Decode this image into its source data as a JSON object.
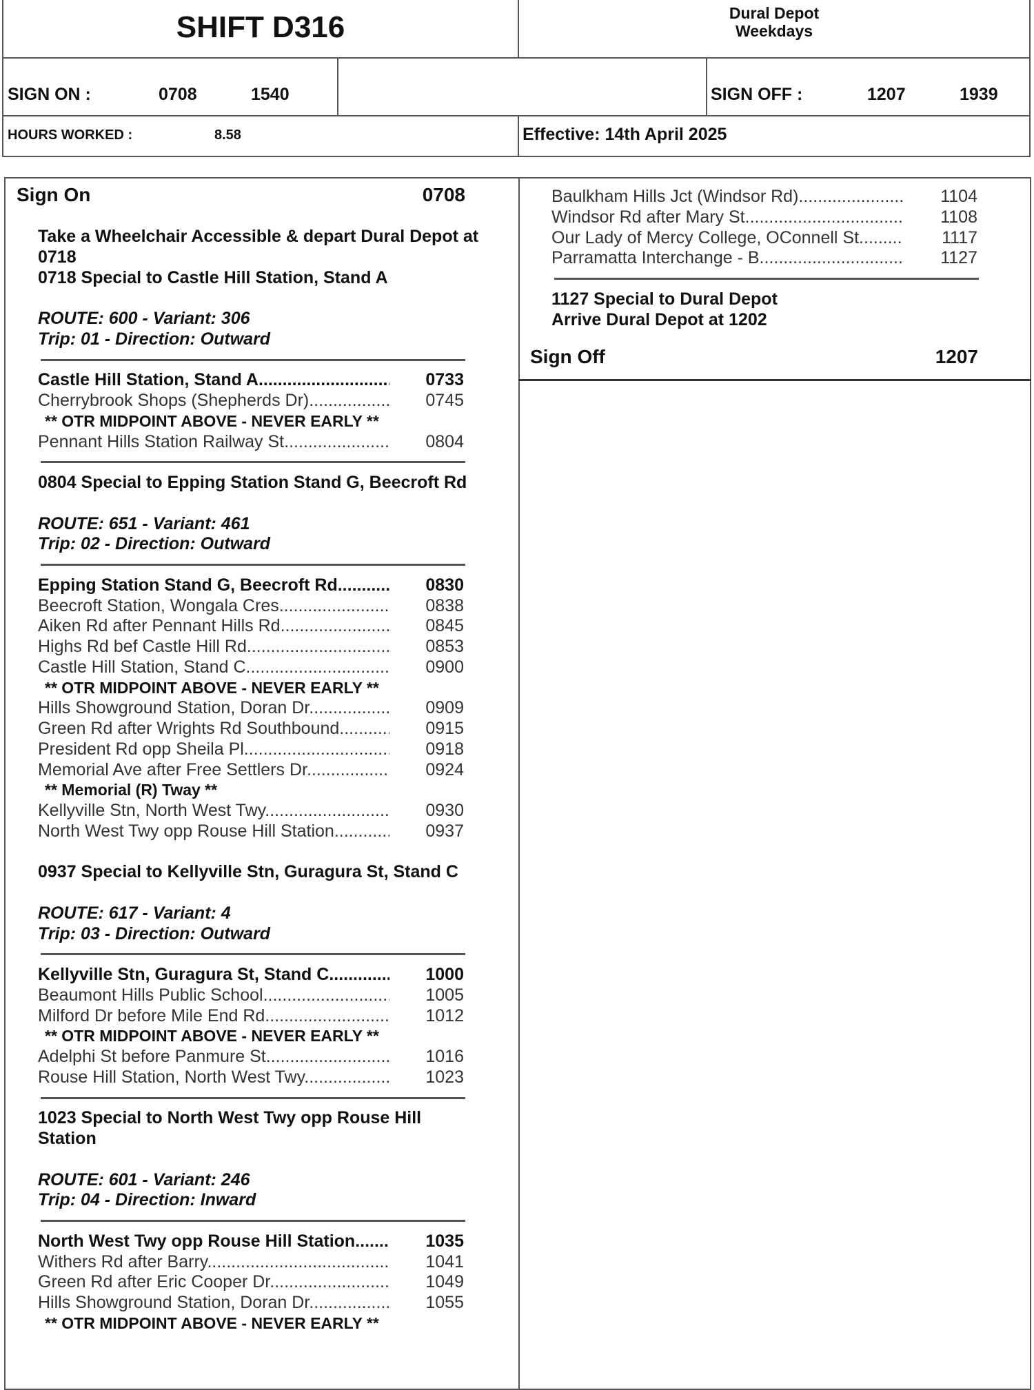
{
  "header": {
    "shift_title": "SHIFT D316",
    "depot": "Dural Depot",
    "days": "Weekdays",
    "sign_on_label": "SIGN ON :",
    "sign_on_times": [
      "0708",
      "1540"
    ],
    "sign_off_label": "SIGN OFF :",
    "sign_off_times": [
      "1207",
      "1939"
    ],
    "hours_worked_label": "HOURS WORKED :",
    "hours_worked": "8.58",
    "effective": "Effective: 14th April 2025"
  },
  "left": {
    "sign_on": {
      "label": "Sign On",
      "time": "0708"
    },
    "items": [
      {
        "type": "line",
        "text": "Take a Wheelchair Accessible & depart Dural Depot at"
      },
      {
        "type": "line",
        "text": "0718"
      },
      {
        "type": "line",
        "text": "0718 Special to Castle Hill Station, Stand A"
      },
      {
        "type": "blank"
      },
      {
        "type": "route",
        "text": "ROUTE: 600 - Variant: 306"
      },
      {
        "type": "route",
        "text": "Trip: 01 - Direction: Outward"
      },
      {
        "type": "rule"
      },
      {
        "type": "stop",
        "bold": true,
        "name": "Castle Hill Station, Stand A",
        "time": "0733"
      },
      {
        "type": "stop",
        "name": "Cherrybrook Shops (Shepherds Dr)",
        "time": "0745"
      },
      {
        "type": "note",
        "text": "** OTR MIDPOINT ABOVE - NEVER EARLY **"
      },
      {
        "type": "stop",
        "name": "Pennant Hills Station Railway St",
        "time": "0804"
      },
      {
        "type": "rule"
      },
      {
        "type": "line",
        "text": "0804 Special to Epping Station Stand G, Beecroft Rd"
      },
      {
        "type": "blank"
      },
      {
        "type": "route",
        "text": "ROUTE: 651 - Variant: 461"
      },
      {
        "type": "route",
        "text": "Trip: 02 - Direction: Outward"
      },
      {
        "type": "rule"
      },
      {
        "type": "stop",
        "bold": true,
        "name": "Epping Station Stand G, Beecroft Rd",
        "time": "0830"
      },
      {
        "type": "stop",
        "name": "Beecroft Station, Wongala Cres",
        "time": "0838"
      },
      {
        "type": "stop",
        "name": "Aiken Rd after Pennant Hills Rd",
        "time": "0845"
      },
      {
        "type": "stop",
        "name": "Highs Rd bef Castle Hill Rd",
        "time": "0853"
      },
      {
        "type": "stop",
        "name": "Castle Hill Station, Stand C",
        "time": "0900"
      },
      {
        "type": "note",
        "text": "** OTR MIDPOINT ABOVE - NEVER EARLY **"
      },
      {
        "type": "stop",
        "name": "Hills Showground Station, Doran Dr",
        "time": "0909"
      },
      {
        "type": "stop",
        "name": "Green Rd after Wrights Rd Southbound",
        "time": "0915"
      },
      {
        "type": "stop",
        "name": "President Rd opp Sheila Pl",
        "time": "0918"
      },
      {
        "type": "stop",
        "name": "Memorial Ave after Free Settlers Dr",
        "time": "0924"
      },
      {
        "type": "note",
        "text": "** Memorial (R) Tway **"
      },
      {
        "type": "stop",
        "name": "Kellyville Stn, North West Twy",
        "time": "0930"
      },
      {
        "type": "stop",
        "name": "North West Twy opp Rouse Hill Station",
        "time": "0937"
      },
      {
        "type": "blank"
      },
      {
        "type": "line",
        "text": "0937 Special to Kellyville Stn, Guragura St, Stand C"
      },
      {
        "type": "blank"
      },
      {
        "type": "route",
        "text": "ROUTE: 617 - Variant: 4"
      },
      {
        "type": "route",
        "text": "Trip: 03 - Direction: Outward"
      },
      {
        "type": "rule"
      },
      {
        "type": "stop",
        "bold": true,
        "name": "Kellyville Stn, Guragura St, Stand C",
        "time": "1000"
      },
      {
        "type": "stop",
        "name": "Beaumont Hills Public School",
        "time": "1005"
      },
      {
        "type": "stop",
        "name": "Milford Dr before Mile End Rd",
        "time": "1012"
      },
      {
        "type": "note",
        "text": "** OTR MIDPOINT ABOVE - NEVER EARLY **"
      },
      {
        "type": "stop",
        "name": "Adelphi St before Panmure St",
        "time": "1016"
      },
      {
        "type": "stop",
        "name": "Rouse Hill Station, North West Twy",
        "time": "1023"
      },
      {
        "type": "rule"
      },
      {
        "type": "line",
        "text": "1023 Special to North West Twy opp Rouse Hill"
      },
      {
        "type": "line",
        "text": "Station"
      },
      {
        "type": "blank"
      },
      {
        "type": "route",
        "text": "ROUTE: 601 - Variant: 246"
      },
      {
        "type": "route",
        "text": "Trip: 04 - Direction: Inward"
      },
      {
        "type": "rule"
      },
      {
        "type": "stop",
        "bold": true,
        "name": "North West Twy opp Rouse Hill Station",
        "time": "1035"
      },
      {
        "type": "stop",
        "name": "Withers Rd after Barry",
        "time": "1041"
      },
      {
        "type": "stop",
        "name": "Green Rd after Eric Cooper Dr",
        "time": "1049"
      },
      {
        "type": "stop",
        "name": "Hills Showground Station, Doran Dr",
        "time": "1055"
      },
      {
        "type": "note",
        "text": "** OTR MIDPOINT ABOVE - NEVER EARLY **"
      }
    ]
  },
  "right": {
    "items": [
      {
        "type": "stop",
        "name": "Baulkham Hills Jct (Windsor Rd)",
        "time": "1104"
      },
      {
        "type": "stop",
        "name": "Windsor Rd after Mary St",
        "time": "1108"
      },
      {
        "type": "stop",
        "name": "Our Lady of Mercy College, OConnell St",
        "time": "1117"
      },
      {
        "type": "stop",
        "name": "Parramatta Interchange -  B",
        "time": "1127"
      },
      {
        "type": "rule"
      },
      {
        "type": "line",
        "text": "1127 Special to Dural Depot"
      },
      {
        "type": "line",
        "text": "Arrive Dural Depot at 1202"
      }
    ],
    "sign_off": {
      "label": "Sign Off",
      "time": "1207"
    }
  }
}
